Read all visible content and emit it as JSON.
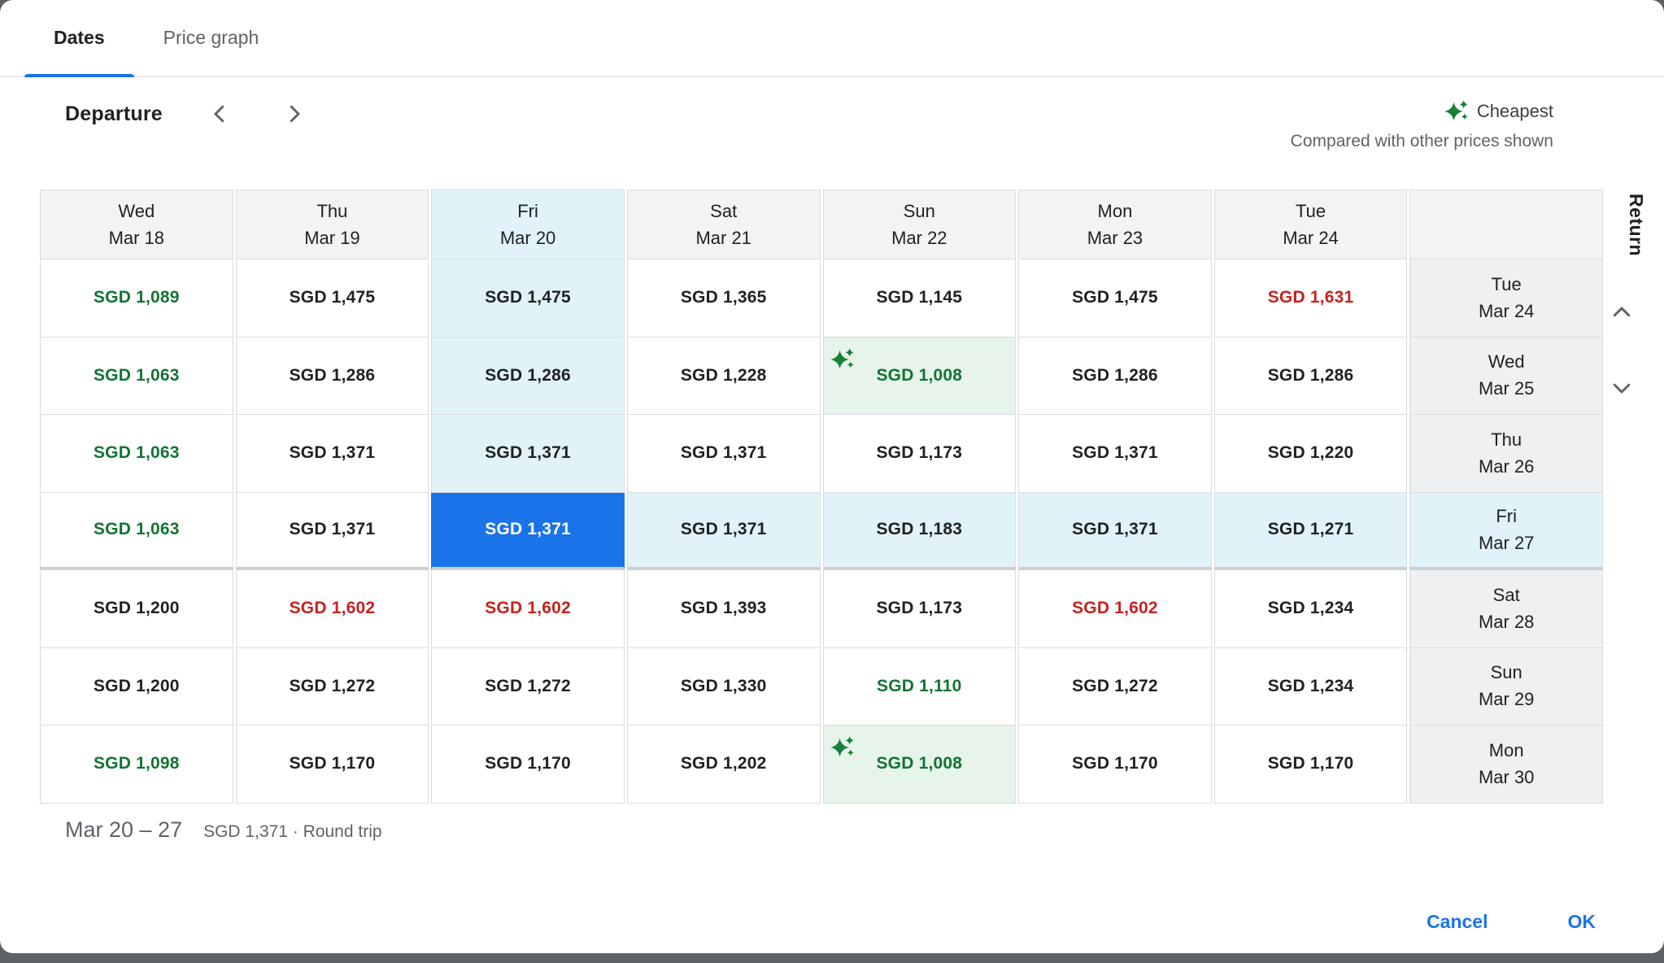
{
  "tabs": [
    {
      "label": "Dates",
      "active": true
    },
    {
      "label": "Price graph",
      "active": false
    }
  ],
  "toolbar": {
    "departure_label": "Departure",
    "prev_icon": "chevron-left",
    "next_icon": "chevron-right"
  },
  "legend": {
    "cheapest_label": "Cheapest",
    "subtitle": "Compared with other prices shown"
  },
  "return_axis": {
    "label": "Return"
  },
  "calendar": {
    "departure_days": [
      {
        "day": "Wed",
        "date": "Mar 18"
      },
      {
        "day": "Thu",
        "date": "Mar 19"
      },
      {
        "day": "Fri",
        "date": "Mar 20",
        "highlight": true
      },
      {
        "day": "Sat",
        "date": "Mar 21"
      },
      {
        "day": "Sun",
        "date": "Mar 22"
      },
      {
        "day": "Mon",
        "date": "Mar 23"
      },
      {
        "day": "Tue",
        "date": "Mar 24"
      }
    ],
    "rows": [
      {
        "day": "Tue",
        "date": "Mar 24",
        "cells": [
          {
            "price": "SGD 1,089",
            "tone": "low"
          },
          {
            "price": "SGD 1,475"
          },
          {
            "price": "SGD 1,475",
            "bg": "col"
          },
          {
            "price": "SGD 1,365"
          },
          {
            "price": "SGD 1,145"
          },
          {
            "price": "SGD 1,475"
          },
          {
            "price": "SGD 1,631",
            "tone": "high"
          }
        ]
      },
      {
        "day": "Wed",
        "date": "Mar 25",
        "cells": [
          {
            "price": "SGD 1,063",
            "tone": "low"
          },
          {
            "price": "SGD 1,286"
          },
          {
            "price": "SGD 1,286",
            "bg": "col"
          },
          {
            "price": "SGD 1,228"
          },
          {
            "price": "SGD 1,008",
            "tone": "low",
            "bg": "cheapest",
            "sparkle": true
          },
          {
            "price": "SGD 1,286"
          },
          {
            "price": "SGD 1,286"
          }
        ]
      },
      {
        "day": "Thu",
        "date": "Mar 26",
        "cells": [
          {
            "price": "SGD 1,063",
            "tone": "low"
          },
          {
            "price": "SGD 1,371"
          },
          {
            "price": "SGD 1,371",
            "bg": "col"
          },
          {
            "price": "SGD 1,371"
          },
          {
            "price": "SGD 1,173"
          },
          {
            "price": "SGD 1,371"
          },
          {
            "price": "SGD 1,220"
          }
        ]
      },
      {
        "day": "Fri",
        "date": "Mar 27",
        "highlight": true,
        "cells": [
          {
            "price": "SGD 1,063",
            "tone": "low"
          },
          {
            "price": "SGD 1,371"
          },
          {
            "price": "SGD 1,371",
            "bg": "selected"
          },
          {
            "price": "SGD 1,371",
            "bg": "row"
          },
          {
            "price": "SGD 1,183",
            "bg": "row"
          },
          {
            "price": "SGD 1,371",
            "bg": "row"
          },
          {
            "price": "SGD 1,271",
            "bg": "row"
          }
        ]
      },
      {
        "day": "Sat",
        "date": "Mar 28",
        "cells": [
          {
            "price": "SGD 1,200"
          },
          {
            "price": "SGD 1,602",
            "tone": "high"
          },
          {
            "price": "SGD 1,602",
            "tone": "high"
          },
          {
            "price": "SGD 1,393"
          },
          {
            "price": "SGD 1,173"
          },
          {
            "price": "SGD 1,602",
            "tone": "high"
          },
          {
            "price": "SGD 1,234"
          }
        ]
      },
      {
        "day": "Sun",
        "date": "Mar 29",
        "cells": [
          {
            "price": "SGD 1,200"
          },
          {
            "price": "SGD 1,272"
          },
          {
            "price": "SGD 1,272"
          },
          {
            "price": "SGD 1,330"
          },
          {
            "price": "SGD 1,110",
            "tone": "low"
          },
          {
            "price": "SGD 1,272"
          },
          {
            "price": "SGD 1,234"
          }
        ]
      },
      {
        "day": "Mon",
        "date": "Mar 30",
        "cells": [
          {
            "price": "SGD 1,098",
            "tone": "low"
          },
          {
            "price": "SGD 1,170"
          },
          {
            "price": "SGD 1,170"
          },
          {
            "price": "SGD 1,202"
          },
          {
            "price": "SGD 1,008",
            "tone": "low",
            "bg": "cheapest",
            "sparkle": true
          },
          {
            "price": "SGD 1,170"
          },
          {
            "price": "SGD 1,170"
          }
        ]
      }
    ]
  },
  "summary": {
    "date_range": "Mar 20 – 27",
    "price_note": "SGD 1,371 · Round trip"
  },
  "actions": {
    "cancel_label": "Cancel",
    "ok_label": "OK"
  },
  "colors": {
    "accent_blue": "#1a73e8",
    "low_price_green": "#137333",
    "high_price_red": "#c5221f",
    "column_highlight": "#e1f3f8",
    "cheapest_highlight": "#e6f4ea",
    "header_gray": "#f1f3f4",
    "border_gray": "#dadce0"
  }
}
